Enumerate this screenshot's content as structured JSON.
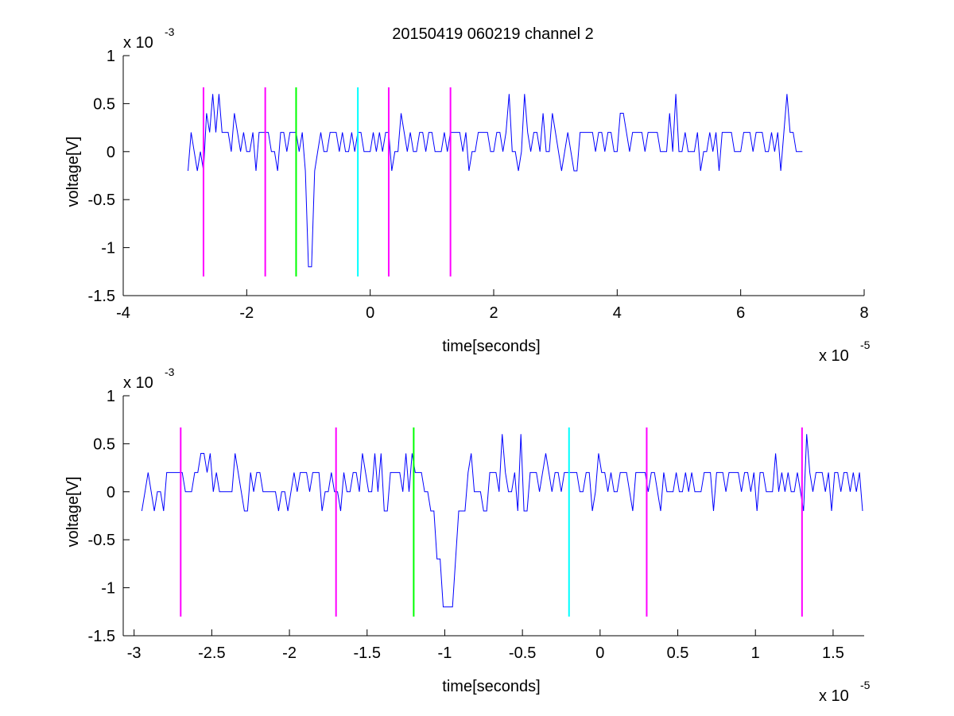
{
  "figure_title": "20150419 060219 channel 2",
  "chart_data": [
    {
      "type": "line",
      "title": "20150419 060219 channel 2",
      "xlabel": "time[seconds]",
      "ylabel": "voltage[V]",
      "x_exponent_label": "x 10",
      "x_exponent": "-5",
      "y_exponent_label": "x 10",
      "y_exponent": "-3",
      "xlim": [
        -4,
        8
      ],
      "ylim": [
        -1.5,
        1
      ],
      "xticks": [
        -4,
        -2,
        0,
        2,
        4,
        6,
        8
      ],
      "xtick_labels": [
        "-4",
        "-2",
        "0",
        "2",
        "4",
        "6",
        "8"
      ],
      "yticks": [
        -1.5,
        -1,
        -0.5,
        0,
        0.5,
        1
      ],
      "ytick_labels": [
        "-1.5",
        "-1",
        "-0.5",
        "0",
        "0.5",
        "1"
      ],
      "grid": false,
      "trace": {
        "color": "#0000ff",
        "x_start": -2.95,
        "x_end": 7.0,
        "baseline_levels": [
          0,
          0.2
        ],
        "pulse": {
          "x": -0.98,
          "y_min": -1.2
        }
      },
      "markers": [
        {
          "x": -2.7,
          "y_low": -1.3,
          "y_high": 0.67,
          "color": "#ff00ff"
        },
        {
          "x": -1.7,
          "y_low": -1.3,
          "y_high": 0.67,
          "color": "#ff00ff"
        },
        {
          "x": -1.2,
          "y_low": -1.3,
          "y_high": 0.67,
          "color": "#00ff00"
        },
        {
          "x": -0.2,
          "y_low": -1.3,
          "y_high": 0.67,
          "color": "#00ffff"
        },
        {
          "x": 0.3,
          "y_low": -1.3,
          "y_high": 0.67,
          "color": "#ff00ff"
        },
        {
          "x": 1.3,
          "y_low": -1.3,
          "y_high": 0.67,
          "color": "#ff00ff"
        }
      ]
    },
    {
      "type": "line",
      "title": "",
      "xlabel": "time[seconds]",
      "ylabel": "voltage[V]",
      "x_exponent_label": "x 10",
      "x_exponent": "-5",
      "y_exponent_label": "x 10",
      "y_exponent": "-3",
      "xlim": [
        -3.07,
        1.7
      ],
      "ylim": [
        -1.5,
        1
      ],
      "xticks": [
        -3,
        -2.5,
        -2,
        -1.5,
        -1,
        -0.5,
        0,
        0.5,
        1,
        1.5
      ],
      "xtick_labels": [
        "-3",
        "-2.5",
        "-2",
        "-1.5",
        "-1",
        "-0.5",
        "0",
        "0.5",
        "1",
        "1.5"
      ],
      "yticks": [
        -1.5,
        -1,
        -0.5,
        0,
        0.5,
        1
      ],
      "ytick_labels": [
        "-1.5",
        "-1",
        "-0.5",
        "0",
        "0.5",
        "1"
      ],
      "grid": false,
      "trace": {
        "color": "#0000ff",
        "x_start": -2.95,
        "x_end": 1.7,
        "baseline_levels": [
          0,
          0.2
        ],
        "pulse": {
          "x": -0.98,
          "y_min": -1.2
        }
      },
      "markers": [
        {
          "x": -2.7,
          "y_low": -1.3,
          "y_high": 0.67,
          "color": "#ff00ff"
        },
        {
          "x": -1.7,
          "y_low": -1.3,
          "y_high": 0.67,
          "color": "#ff00ff"
        },
        {
          "x": -1.2,
          "y_low": -1.3,
          "y_high": 0.67,
          "color": "#00ff00"
        },
        {
          "x": -0.2,
          "y_low": -1.3,
          "y_high": 0.67,
          "color": "#00ffff"
        },
        {
          "x": 0.3,
          "y_low": -1.3,
          "y_high": 0.67,
          "color": "#ff00ff"
        },
        {
          "x": 1.3,
          "y_low": -1.3,
          "y_high": 0.67,
          "color": "#ff00ff"
        }
      ]
    }
  ]
}
